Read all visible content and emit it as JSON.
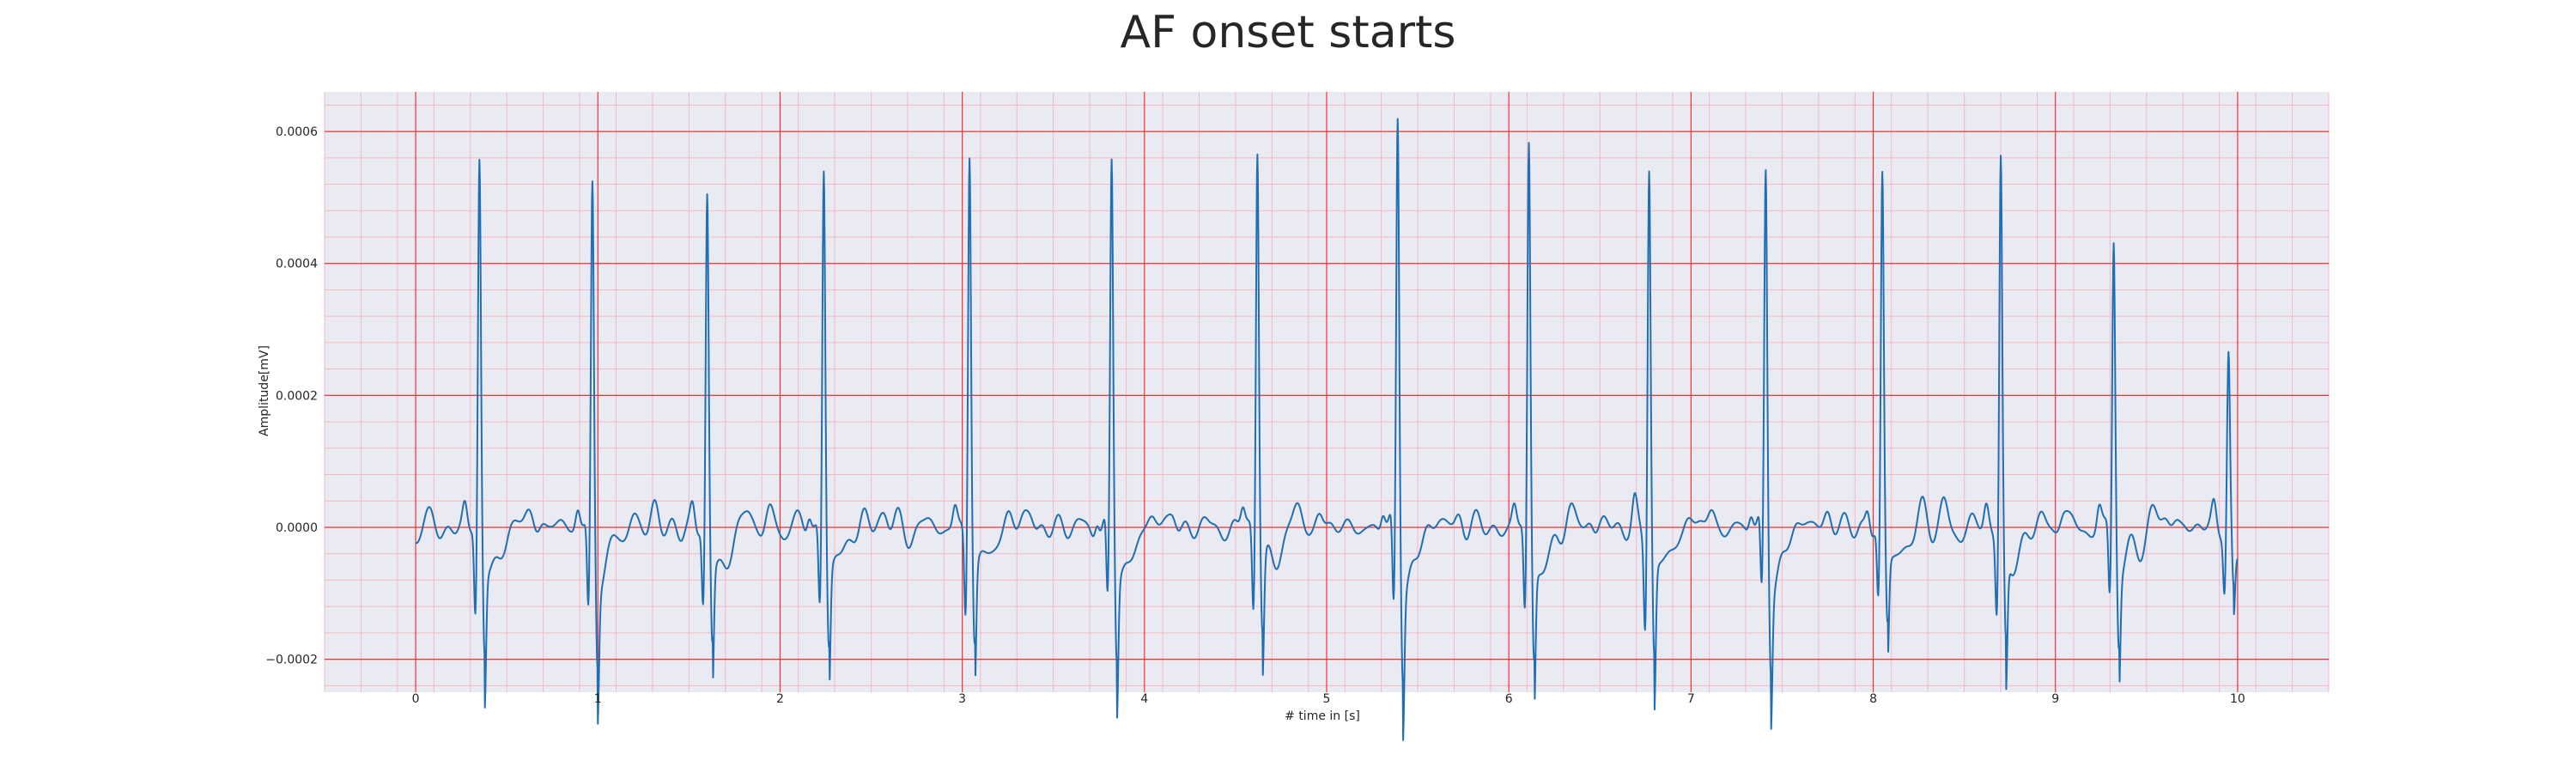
{
  "chart_data": {
    "type": "line",
    "title": "AF onset starts",
    "xlabel": "# time in [s]",
    "ylabel": "Amplitude[mV]",
    "xlim": [
      -0.5,
      10.5
    ],
    "ylim": [
      -0.00025,
      0.00066
    ],
    "xticks": [
      0,
      1,
      2,
      3,
      4,
      5,
      6,
      7,
      8,
      9,
      10
    ],
    "xtick_labels": [
      "0",
      "1",
      "2",
      "3",
      "4",
      "5",
      "6",
      "7",
      "8",
      "9",
      "10"
    ],
    "yticks": [
      -0.0002,
      0.0,
      0.0002,
      0.0004,
      0.0006
    ],
    "ytick_labels": [
      "−0.0002",
      "0.0000",
      "0.0002",
      "0.0004",
      "0.0006"
    ],
    "grid": true,
    "minor_grid": true,
    "legend": "none",
    "series": [
      {
        "values_note": "",
        "beats": [
          {
            "t": 0.35,
            "r": 0.00055,
            "q": -0.000135,
            "s": -0.000195
          },
          {
            "t": 0.97,
            "r": 0.00052,
            "q": -0.000135,
            "s": -0.000195
          },
          {
            "t": 1.6,
            "r": 0.000497,
            "q": -0.00012,
            "s": -0.000185
          },
          {
            "t": 2.24,
            "r": 0.000552,
            "q": -0.00012,
            "s": -0.00018
          },
          {
            "t": 3.04,
            "r": 0.000577,
            "q": -0.00013,
            "s": -0.00018
          },
          {
            "t": 3.82,
            "r": 0.000545,
            "q": -0.00013,
            "s": -0.0002
          },
          {
            "t": 4.62,
            "r": 0.000585,
            "q": -0.000125,
            "s": -0.000165
          },
          {
            "t": 5.39,
            "r": 0.000615,
            "q": -0.000145,
            "s": -0.00021
          },
          {
            "t": 6.11,
            "r": 0.000582,
            "q": -0.00013,
            "s": -0.000205
          },
          {
            "t": 6.77,
            "r": 0.000557,
            "q": -0.000135,
            "s": -0.000205
          },
          {
            "t": 7.41,
            "r": 0.000532,
            "q": -0.00012,
            "s": -0.000195
          },
          {
            "t": 8.05,
            "r": 0.00053,
            "q": -0.00011,
            "s": -0.000155
          },
          {
            "t": 8.7,
            "r": 0.000565,
            "q": -0.00012,
            "s": -0.000185
          },
          {
            "t": 9.32,
            "r": 0.000435,
            "q": -0.00011,
            "s": -0.00017
          },
          {
            "t": 9.95,
            "r": 0.000258,
            "q": -9e-05,
            "s": -0.0001
          }
        ],
        "x_range": [
          0.0,
          10.0
        ],
        "baseline": 0.0
      }
    ]
  },
  "colors": {
    "figure_background": "#ffffff",
    "axes_background": "#eaeaf2",
    "major_grid": "#ee3333",
    "minor_grid": "#f4b8c4",
    "line": "#1f6fb2",
    "text": "#262626"
  }
}
